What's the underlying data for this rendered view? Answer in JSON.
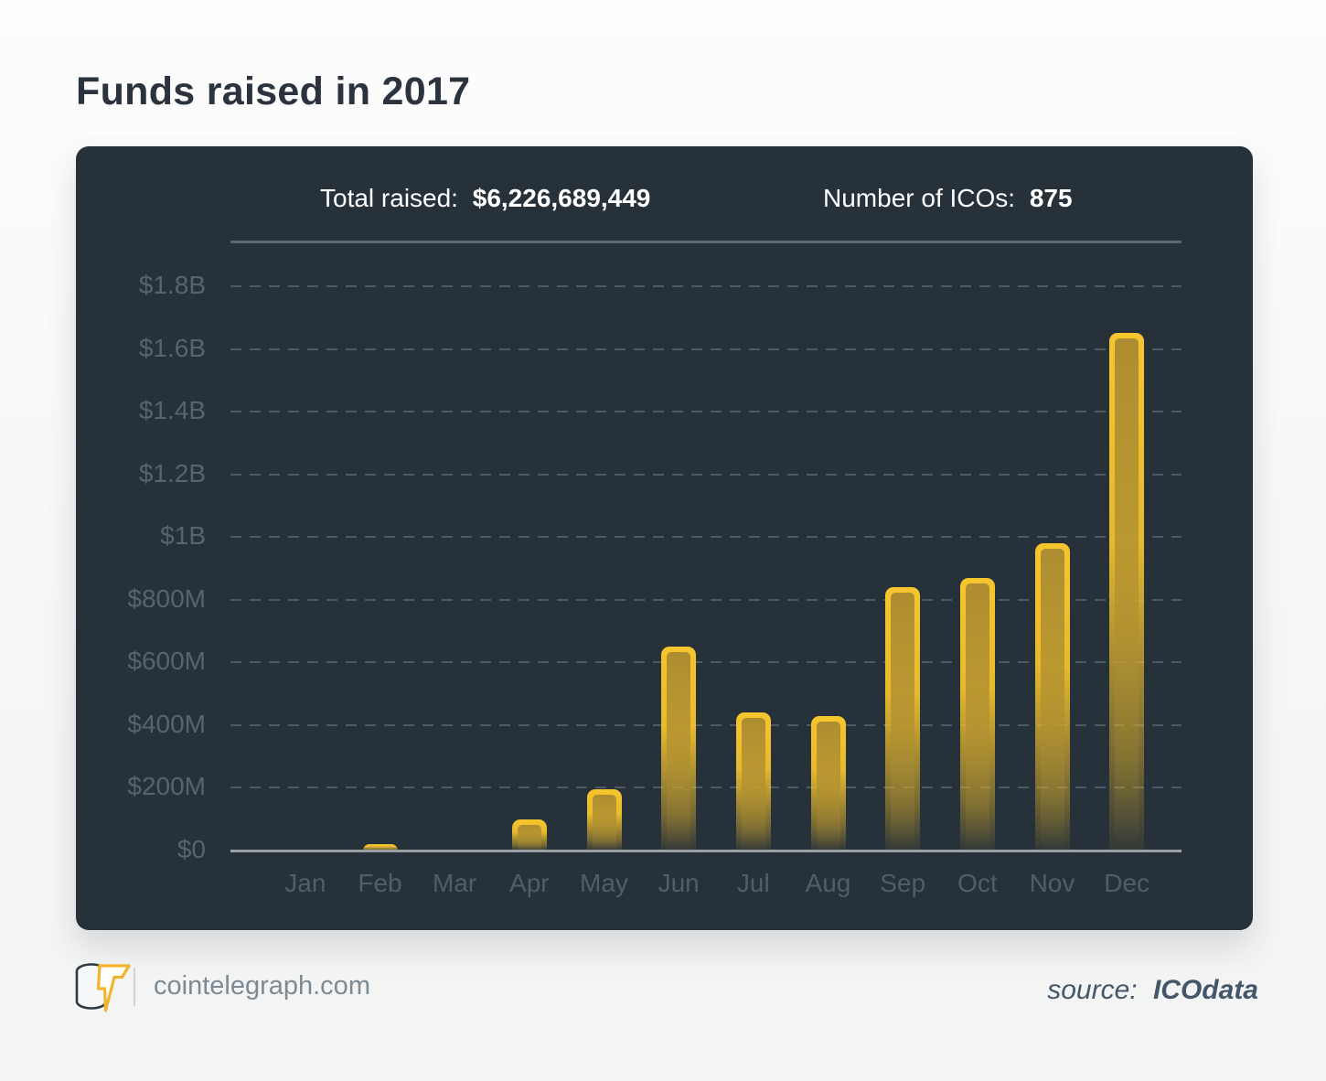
{
  "page": {
    "title": "Funds raised in 2017",
    "background_color": "#f6f7f7",
    "title_color": "#2a333e"
  },
  "panel": {
    "background_color": "#273139",
    "stats": [
      {
        "label": "Total raised:",
        "value": "$6,226,689,449"
      },
      {
        "label": "Number of ICOs:",
        "value": "875"
      }
    ]
  },
  "chart_data": {
    "type": "bar",
    "title": "Funds raised in 2017",
    "unit": "USD millions",
    "categories": [
      "Jan",
      "Feb",
      "Mar",
      "Apr",
      "May",
      "Jun",
      "Jul",
      "Aug",
      "Sep",
      "Oct",
      "Nov",
      "Dec"
    ],
    "values": [
      0,
      20,
      0,
      100,
      195,
      650,
      440,
      430,
      840,
      870,
      980,
      1650
    ],
    "total_raised": "$6,226,689,449",
    "number_of_icos": "875",
    "ylim": [
      0,
      1800
    ],
    "yticks": [
      {
        "label": "$1.8B",
        "value": 1800
      },
      {
        "label": "$1.6B",
        "value": 1600
      },
      {
        "label": "$1.4B",
        "value": 1400
      },
      {
        "label": "$1.2B",
        "value": 1200
      },
      {
        "label": "$1B",
        "value": 1000
      },
      {
        "label": "$800M",
        "value": 800
      },
      {
        "label": "$600M",
        "value": 600
      },
      {
        "label": "$400M",
        "value": 400
      },
      {
        "label": "$200M",
        "value": 200
      },
      {
        "label": "$0",
        "value": 0
      }
    ],
    "grid": "horizontal dashed, solid zero axis",
    "legend": "none",
    "bar_border_color": "#f7c52d",
    "bar_fill_color": "#ad8d31",
    "gridline_color": "#4d5a64",
    "axis_line_color": "#98a0a6",
    "tick_label_color": "#55656f",
    "month_label_color": "#4f5f6a"
  },
  "footer": {
    "logo": "cointelegraph-coins-lightning",
    "site": "cointelegraph.com",
    "source_label": "source:",
    "source_value": "ICOdata"
  }
}
